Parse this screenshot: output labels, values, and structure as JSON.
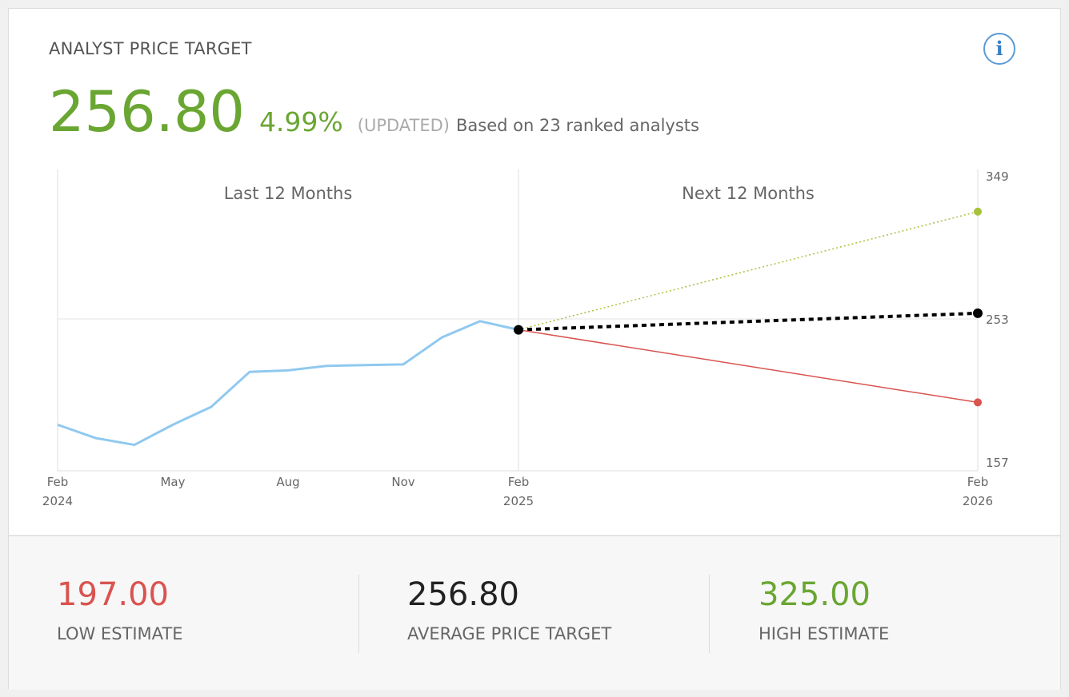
{
  "header": {
    "title": "ANALYST PRICE TARGET",
    "price": "256.80",
    "change_pct": "4.99%",
    "updated_label": "(UPDATED)",
    "based_on": "Based on 23 ranked analysts",
    "info_icon": "info-icon"
  },
  "colors": {
    "green": "#6aa632",
    "red": "#d9534f",
    "history_line": "#90c9f0",
    "high_line": "#a6c23a",
    "average_line": "#000000"
  },
  "chart_data": {
    "type": "line",
    "sections": [
      "Last 12 Months",
      "Next 12 Months"
    ],
    "ylim": [
      157,
      349
    ],
    "y_ticks": [
      157,
      253,
      349
    ],
    "x_ticks": [
      {
        "month": "Feb",
        "year": "2024",
        "index": 0
      },
      {
        "month": "May",
        "year": "",
        "index": 3
      },
      {
        "month": "Aug",
        "year": "",
        "index": 6
      },
      {
        "month": "Nov",
        "year": "",
        "index": 9
      },
      {
        "month": "Feb",
        "year": "2025",
        "index": 12
      },
      {
        "month": "Feb",
        "year": "2026",
        "index": 24
      }
    ],
    "history": {
      "x": [
        0,
        1,
        2,
        3,
        4,
        5,
        6,
        7,
        8,
        9,
        10,
        11,
        12
      ],
      "values": [
        182,
        173,
        168.5,
        182,
        194,
        217.5,
        218.5,
        221.5,
        222,
        222.5,
        240.5,
        251.5,
        245.7
      ]
    },
    "projections": [
      {
        "name": "high",
        "from": 245.7,
        "to": 325.0,
        "style": "dotted"
      },
      {
        "name": "average",
        "from": 245.7,
        "to": 256.8,
        "style": "dashed"
      },
      {
        "name": "low",
        "from": 245.7,
        "to": 197.0,
        "style": "solid"
      }
    ]
  },
  "footer": {
    "low": {
      "value": "197.00",
      "label": "LOW ESTIMATE"
    },
    "average": {
      "value": "256.80",
      "label": "AVERAGE PRICE TARGET"
    },
    "high": {
      "value": "325.00",
      "label": "HIGH ESTIMATE"
    }
  }
}
